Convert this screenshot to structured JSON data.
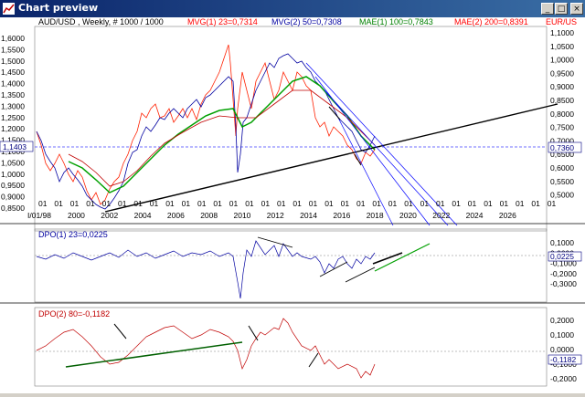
{
  "window": {
    "title": "Chart preview",
    "buttons": [
      "minimize",
      "maximize",
      "close"
    ]
  },
  "panel1": {
    "symbol_label": "AUD/USD , Weekly, # 1000 / 1000",
    "indicators": [
      {
        "text": "MVG(1) 23=0,7314",
        "color": "#ff0000"
      },
      {
        "text": "MVG(2) 50=0,7308",
        "color": "#0000a0"
      },
      {
        "text": "MAE(1) 100=0,7843",
        "color": "#008000"
      },
      {
        "text": "MAE(2) 200=0,8391",
        "color": "#ff0000"
      },
      {
        "text": "EUR/US",
        "color": "#ff0000"
      }
    ],
    "left_axis": [
      "1,6000",
      "1,5500",
      "1,5000",
      "1,4500",
      "1,4000",
      "1,3500",
      "1,3000",
      "1,2500",
      "1,2000",
      "1,1500",
      "1,1000",
      "1,0500",
      "1,0000",
      "0,9500",
      "0,9000",
      "0,8500"
    ],
    "left_current": "1,1403",
    "right_axis": [
      "1,1000",
      "1,0500",
      "1,0000",
      "0,9500",
      "0,9000",
      "0,8500",
      "0,8000",
      "0,7500",
      "0,7000",
      "0,6500",
      "0,6000",
      "0,5500",
      "0,5000"
    ],
    "right_current": "0,7360",
    "x_top_labels": [
      "01",
      "01",
      "01",
      "01",
      "01",
      "01",
      "01",
      "01",
      "01",
      "01",
      "01",
      "01",
      "01",
      "01",
      "01",
      "01",
      "01",
      "01",
      "01",
      "01",
      "01",
      "01",
      "01",
      "01",
      "01",
      "01",
      "01",
      "01",
      "01",
      "01",
      "01",
      "01",
      "01"
    ],
    "x_years": [
      "I/01/98",
      "2000",
      "2002",
      "2004",
      "2006",
      "2008",
      "2010",
      "2012",
      "2014",
      "2016",
      "2018",
      "2020",
      "2022",
      "2024",
      "2026"
    ]
  },
  "panel2": {
    "label": "DPO(1) 23=0,0225",
    "axis": [
      "0,1000",
      "0,0000",
      "-0,1000",
      "-0,2000",
      "-0,3000"
    ],
    "current": "0,0225"
  },
  "panel3": {
    "label": "DPO(2) 80=-0,1182",
    "axis": [
      "0,2000",
      "0,1000",
      "0,0000",
      "-0,1000",
      "-0,2000"
    ],
    "current": "-0,1182"
  },
  "colors": {
    "titlebar_start": "#0a246a",
    "titlebar_end": "#3a6ea5",
    "price_blue": "#0000a0",
    "price_red": "#ff0000",
    "ma_green": "#00a000",
    "trend_black": "#000000",
    "channel_blue": "#0000ff",
    "current_line": "#4040ff"
  }
}
